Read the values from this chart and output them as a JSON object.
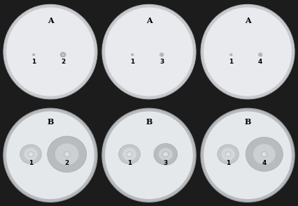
{
  "grid_rows": 2,
  "grid_cols": 3,
  "bg_color": "#1a1a1a",
  "plate_fill_top": "#dfe2e8",
  "plate_rim_top": "#c0c3c8",
  "plate_fill_bottom": "#e0e3e7",
  "plate_rim_bottom": "#b8bbbf",
  "labels_top": [
    "A",
    "A",
    "A"
  ],
  "labels_bottom": [
    "B",
    "B",
    "B"
  ],
  "number_labels": [
    [
      "1",
      "2"
    ],
    [
      "1",
      "3"
    ],
    [
      "1",
      "4"
    ]
  ],
  "spot_tiny_color": "#c0c2c6",
  "spot_main_color": "#a8abb2",
  "halo_outer_color": "#b8bbbe",
  "halo_inner_color": "#d0d3d6",
  "colony_center_color": "#d8dbdd",
  "colony_ring_color": "#a0a4a8",
  "overall_bg": "#1c1c1c",
  "top_panels_bg": "#2a2a2a",
  "bottom_panels_bg": "#252525"
}
